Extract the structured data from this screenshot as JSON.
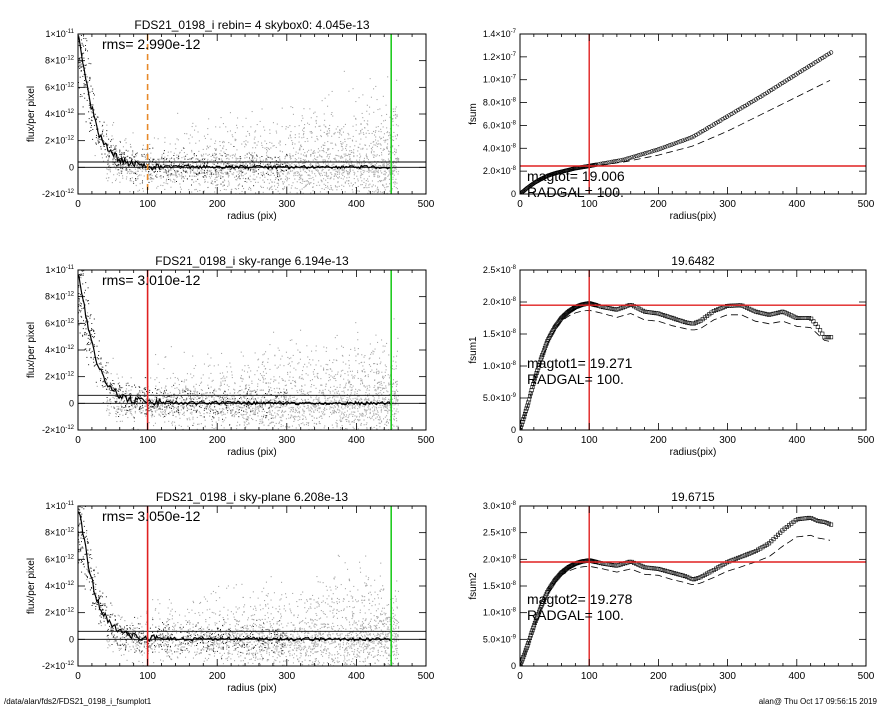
{
  "footer": {
    "path": "/data/alan/fds2/FDS21_0198_i_fsumplot1",
    "stamp": "alan@  Thu Oct 17 09:56:15 2019"
  },
  "colors": {
    "points_dark": "#202020",
    "points_light": "#a9a9a9",
    "vline_red": "#e02020",
    "vline_green": "#22cc22",
    "vline_orange": "#e88a2a",
    "hline_red": "#e02020"
  },
  "chart_data": [
    {
      "type": "scatter",
      "panel": "profile-1",
      "title": "FDS21_0198_i rebin= 4    skybox0:  4.045e-13",
      "xlabel": "radius (pix)",
      "ylabel": "flux/per pixel",
      "xlim": [
        0,
        500
      ],
      "ylim": [
        -2e-12,
        1e-11
      ],
      "xticks": [
        "0",
        "100",
        "200",
        "300",
        "400",
        "500"
      ],
      "yticks": [
        {
          "v": 1e-11,
          "base": "1×10",
          "exp": "-11"
        },
        {
          "v": 8e-12,
          "base": "8×10",
          "exp": "-12"
        },
        {
          "v": 6e-12,
          "base": "6×10",
          "exp": "-12"
        },
        {
          "v": 4e-12,
          "base": "4×10",
          "exp": "-12"
        },
        {
          "v": 2e-12,
          "base": "2×10",
          "exp": "-12"
        },
        {
          "v": 0,
          "base": "0",
          "exp": ""
        },
        {
          "v": -2e-12,
          "base": "-2×10",
          "exp": "-12"
        }
      ],
      "annotation": "rms= 2.990e-12",
      "vlines": [
        {
          "x": 100,
          "color": "orange",
          "dashed": true
        },
        {
          "x": 450,
          "color": "green",
          "dashed": false
        }
      ],
      "hlines": [
        0,
        4e-13
      ],
      "profile": {
        "r": [
          0,
          5,
          10,
          15,
          20,
          25,
          30,
          40,
          50,
          60,
          70,
          80,
          90,
          100,
          120,
          150,
          200,
          250,
          300,
          350,
          400,
          450
        ],
        "y": [
          1e-11,
          8.6e-12,
          7e-12,
          5.6e-12,
          4.4e-12,
          3.4e-12,
          2.6e-12,
          1.6e-12,
          9.5e-13,
          5.5e-13,
          3.5e-13,
          2.3e-13,
          1.5e-13,
          1e-13,
          6e-14,
          4e-14,
          3e-14,
          2e-14,
          1.5e-14,
          1e-14,
          1e-14,
          1e-14
        ]
      }
    },
    {
      "type": "line",
      "panel": "fsum",
      "title": "",
      "xlabel": "radius(pix)",
      "ylabel": "fsum",
      "xlim": [
        0,
        500
      ],
      "ylim": [
        0,
        1.4e-07
      ],
      "xticks": [
        "0",
        "100",
        "200",
        "300",
        "400",
        "500"
      ],
      "yticks": [
        {
          "v": 0,
          "base": "0",
          "exp": ""
        },
        {
          "v": 2e-08,
          "base": "2.0×10",
          "exp": "-8"
        },
        {
          "v": 4e-08,
          "base": "4.0×10",
          "exp": "-8"
        },
        {
          "v": 6e-08,
          "base": "6.0×10",
          "exp": "-8"
        },
        {
          "v": 8e-08,
          "base": "8.0×10",
          "exp": "-8"
        },
        {
          "v": 1e-07,
          "base": "1.0×10",
          "exp": "-7"
        },
        {
          "v": 1.2e-07,
          "base": "1.2×10",
          "exp": "-7"
        },
        {
          "v": 1.4e-07,
          "base": "1.4×10",
          "exp": "-7"
        }
      ],
      "annotations": [
        "magtot=  19.006",
        "RADGAL=    100."
      ],
      "vline_x": 100,
      "hline_y": 2.45e-08,
      "series": [
        {
          "x": [
            0,
            10,
            20,
            30,
            40,
            50,
            60,
            70,
            80,
            90,
            100,
            150,
            200,
            250,
            300,
            350,
            400,
            450
          ],
          "y": [
            0,
            5e-09,
            9.5e-09,
            1.3e-08,
            1.6e-08,
            1.8e-08,
            1.95e-08,
            2.1e-08,
            2.25e-08,
            2.35e-08,
            2.45e-08,
            3e-08,
            3.9e-08,
            5e-08,
            6.8e-08,
            8.6e-08,
            1.05e-07,
            1.24e-07
          ]
        },
        {
          "x": [
            0,
            10,
            20,
            30,
            40,
            50,
            60,
            70,
            80,
            90,
            100,
            150,
            200,
            250,
            300,
            350,
            400,
            450
          ],
          "y": [
            0,
            5e-09,
            9.5e-09,
            1.3e-08,
            1.6e-08,
            1.8e-08,
            1.95e-08,
            2.1e-08,
            2.2e-08,
            2.3e-08,
            2.4e-08,
            2.8e-08,
            3.4e-08,
            4.2e-08,
            5.5e-08,
            7e-08,
            8.5e-08,
            1e-07
          ]
        }
      ]
    },
    {
      "type": "scatter",
      "panel": "profile-2",
      "title": "FDS21_0198_i sky-range  6.194e-13",
      "xlabel": "radius (pix)",
      "ylabel": "flux/per pixel",
      "xlim": [
        0,
        500
      ],
      "ylim": [
        -2e-12,
        1e-11
      ],
      "xticks": [
        "0",
        "100",
        "200",
        "300",
        "400",
        "500"
      ],
      "yticks": [
        {
          "v": 1e-11,
          "base": "1×10",
          "exp": "-11"
        },
        {
          "v": 8e-12,
          "base": "8×10",
          "exp": "-12"
        },
        {
          "v": 6e-12,
          "base": "6×10",
          "exp": "-12"
        },
        {
          "v": 4e-12,
          "base": "4×10",
          "exp": "-12"
        },
        {
          "v": 2e-12,
          "base": "2×10",
          "exp": "-12"
        },
        {
          "v": 0,
          "base": "0",
          "exp": ""
        },
        {
          "v": -2e-12,
          "base": "-2×10",
          "exp": "-12"
        }
      ],
      "annotation": "rms= 3.010e-12",
      "vlines": [
        {
          "x": 100,
          "color": "red",
          "dashed": false
        },
        {
          "x": 450,
          "color": "green",
          "dashed": false
        }
      ],
      "hlines": [
        0,
        6e-13
      ],
      "profile": {
        "r": [
          0,
          5,
          10,
          15,
          20,
          25,
          30,
          40,
          50,
          60,
          70,
          80,
          90,
          100,
          120,
          150,
          200,
          250,
          300,
          350,
          400,
          450
        ],
        "y": [
          1e-11,
          8.6e-12,
          7e-12,
          5.6e-12,
          4.4e-12,
          3.4e-12,
          2.6e-12,
          1.6e-12,
          9.5e-13,
          5.5e-13,
          3.5e-13,
          2.3e-13,
          1.5e-13,
          1e-13,
          6e-14,
          4e-14,
          3e-14,
          2e-14,
          1.5e-14,
          1e-14,
          1e-14,
          1e-14
        ]
      }
    },
    {
      "type": "line",
      "panel": "fsum1",
      "title": "19.6482",
      "xlabel": "radius(pix)",
      "ylabel": "fsum1",
      "xlim": [
        0,
        500
      ],
      "ylim": [
        0,
        2.5e-08
      ],
      "xticks": [
        "0",
        "100",
        "200",
        "300",
        "400",
        "500"
      ],
      "yticks": [
        {
          "v": 0,
          "base": "0",
          "exp": ""
        },
        {
          "v": 5e-09,
          "base": "5.0×10",
          "exp": "-9"
        },
        {
          "v": 1e-08,
          "base": "1.0×10",
          "exp": "-8"
        },
        {
          "v": 1.5e-08,
          "base": "1.5×10",
          "exp": "-8"
        },
        {
          "v": 2e-08,
          "base": "2.0×10",
          "exp": "-8"
        },
        {
          "v": 2.5e-08,
          "base": "2.5×10",
          "exp": "-8"
        }
      ],
      "annotations": [
        "magtot1=  19.271",
        "RADGAL=    100."
      ],
      "vline_x": 100,
      "hline_y": 1.95e-08,
      "series": [
        {
          "x": [
            0,
            10,
            20,
            30,
            40,
            50,
            60,
            70,
            80,
            90,
            100,
            120,
            140,
            160,
            180,
            200,
            220,
            240,
            250,
            260,
            280,
            300,
            320,
            340,
            360,
            380,
            400,
            420,
            430,
            440,
            450
          ],
          "y": [
            0,
            3.5e-09,
            7.5e-09,
            1.1e-08,
            1.4e-08,
            1.6e-08,
            1.75e-08,
            1.85e-08,
            1.92e-08,
            1.96e-08,
            1.98e-08,
            1.92e-08,
            1.88e-08,
            1.96e-08,
            1.85e-08,
            1.82e-08,
            1.75e-08,
            1.68e-08,
            1.66e-08,
            1.7e-08,
            1.86e-08,
            1.94e-08,
            1.95e-08,
            1.85e-08,
            1.8e-08,
            1.85e-08,
            1.75e-08,
            1.75e-08,
            1.62e-08,
            1.45e-08,
            1.45e-08
          ]
        },
        {
          "x": [
            0,
            10,
            20,
            30,
            40,
            50,
            60,
            70,
            80,
            90,
            100,
            120,
            140,
            160,
            180,
            200,
            220,
            240,
            250,
            260,
            280,
            300,
            320,
            340,
            360,
            380,
            400,
            420,
            430,
            440,
            450
          ],
          "y": [
            0,
            3.4e-09,
            7.3e-09,
            1.07e-08,
            1.35e-08,
            1.55e-08,
            1.7e-08,
            1.78e-08,
            1.83e-08,
            1.86e-08,
            1.87e-08,
            1.82e-08,
            1.76e-08,
            1.82e-08,
            1.72e-08,
            1.7e-08,
            1.63e-08,
            1.58e-08,
            1.56e-08,
            1.58e-08,
            1.72e-08,
            1.8e-08,
            1.8e-08,
            1.7e-08,
            1.66e-08,
            1.7e-08,
            1.62e-08,
            1.6e-08,
            1.5e-08,
            1.4e-08,
            1.38e-08
          ]
        }
      ]
    },
    {
      "type": "scatter",
      "panel": "profile-3",
      "title": "FDS21_0198_i sky-plane  6.208e-13",
      "xlabel": "radius (pix)",
      "ylabel": "flux/per pixel",
      "xlim": [
        0,
        500
      ],
      "ylim": [
        -2e-12,
        1e-11
      ],
      "xticks": [
        "0",
        "100",
        "200",
        "300",
        "400",
        "500"
      ],
      "yticks": [
        {
          "v": 1e-11,
          "base": "1×10",
          "exp": "-11"
        },
        {
          "v": 8e-12,
          "base": "8×10",
          "exp": "-12"
        },
        {
          "v": 6e-12,
          "base": "6×10",
          "exp": "-12"
        },
        {
          "v": 4e-12,
          "base": "4×10",
          "exp": "-12"
        },
        {
          "v": 2e-12,
          "base": "2×10",
          "exp": "-12"
        },
        {
          "v": 0,
          "base": "0",
          "exp": ""
        },
        {
          "v": -2e-12,
          "base": "-2×10",
          "exp": "-12"
        }
      ],
      "annotation": "rms= 3.050e-12",
      "vlines": [
        {
          "x": 100,
          "color": "red",
          "dashed": false
        },
        {
          "x": 450,
          "color": "green",
          "dashed": false
        }
      ],
      "hlines": [
        0,
        6e-13
      ],
      "profile": {
        "r": [
          0,
          5,
          10,
          15,
          20,
          25,
          30,
          40,
          50,
          60,
          70,
          80,
          90,
          100,
          120,
          150,
          200,
          250,
          300,
          350,
          400,
          450
        ],
        "y": [
          1e-11,
          8.6e-12,
          7e-12,
          5.6e-12,
          4.4e-12,
          3.4e-12,
          2.6e-12,
          1.6e-12,
          9.5e-13,
          5.5e-13,
          3.5e-13,
          2.3e-13,
          1.5e-13,
          1e-13,
          6e-14,
          4e-14,
          3e-14,
          2e-14,
          1.5e-14,
          1e-14,
          1e-14,
          1e-14
        ]
      }
    },
    {
      "type": "line",
      "panel": "fsum2",
      "title": "19.6715",
      "xlabel": "radius(pix)",
      "ylabel": "fsum2",
      "xlim": [
        0,
        500
      ],
      "ylim": [
        0,
        3e-08
      ],
      "xticks": [
        "0",
        "100",
        "200",
        "300",
        "400",
        "500"
      ],
      "yticks": [
        {
          "v": 0,
          "base": "0",
          "exp": ""
        },
        {
          "v": 5e-09,
          "base": "5.0×10",
          "exp": "-9"
        },
        {
          "v": 1e-08,
          "base": "1.0×10",
          "exp": "-8"
        },
        {
          "v": 1.5e-08,
          "base": "1.5×10",
          "exp": "-8"
        },
        {
          "v": 2e-08,
          "base": "2.0×10",
          "exp": "-8"
        },
        {
          "v": 2.5e-08,
          "base": "2.5×10",
          "exp": "-8"
        },
        {
          "v": 3e-08,
          "base": "3.0×10",
          "exp": "-8"
        }
      ],
      "annotations": [
        "magtot2=  19.278",
        "RADGAL=    100."
      ],
      "vline_x": 100,
      "hline_y": 1.95e-08,
      "series": [
        {
          "x": [
            0,
            10,
            20,
            30,
            40,
            50,
            60,
            70,
            80,
            90,
            100,
            120,
            140,
            160,
            180,
            200,
            220,
            240,
            250,
            260,
            280,
            300,
            320,
            340,
            360,
            380,
            400,
            420,
            430,
            440,
            450
          ],
          "y": [
            0,
            3.5e-09,
            7.5e-09,
            1.1e-08,
            1.4e-08,
            1.6e-08,
            1.75e-08,
            1.85e-08,
            1.92e-08,
            1.96e-08,
            1.98e-08,
            1.92e-08,
            1.88e-08,
            1.96e-08,
            1.85e-08,
            1.82e-08,
            1.75e-08,
            1.68e-08,
            1.62e-08,
            1.66e-08,
            1.8e-08,
            1.95e-08,
            2.05e-08,
            2.15e-08,
            2.3e-08,
            2.55e-08,
            2.75e-08,
            2.78e-08,
            2.72e-08,
            2.7e-08,
            2.65e-08
          ]
        },
        {
          "x": [
            0,
            10,
            20,
            30,
            40,
            50,
            60,
            70,
            80,
            90,
            100,
            120,
            140,
            160,
            180,
            200,
            220,
            240,
            250,
            260,
            280,
            300,
            320,
            340,
            360,
            380,
            400,
            420,
            430,
            440,
            450
          ],
          "y": [
            0,
            3.4e-09,
            7.3e-09,
            1.07e-08,
            1.35e-08,
            1.55e-08,
            1.7e-08,
            1.78e-08,
            1.83e-08,
            1.86e-08,
            1.87e-08,
            1.82e-08,
            1.76e-08,
            1.82e-08,
            1.72e-08,
            1.7e-08,
            1.62e-08,
            1.56e-08,
            1.52e-08,
            1.55e-08,
            1.66e-08,
            1.78e-08,
            1.86e-08,
            1.95e-08,
            2.05e-08,
            2.25e-08,
            2.42e-08,
            2.45e-08,
            2.4e-08,
            2.38e-08,
            2.35e-08
          ]
        }
      ]
    }
  ]
}
